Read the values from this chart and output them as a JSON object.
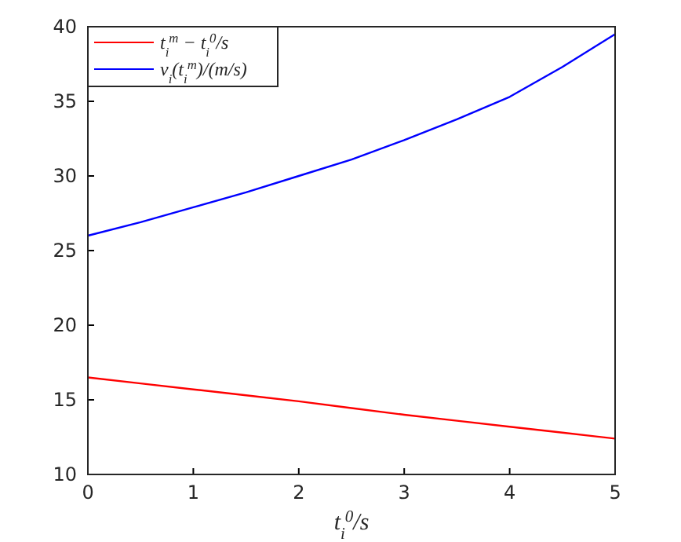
{
  "chart_data": {
    "type": "line",
    "xlabel": "t$_{i}$$^{0}$/s",
    "x": [
      0,
      0.5,
      1,
      1.5,
      2,
      2.5,
      3,
      3.5,
      4,
      4.5,
      5
    ],
    "series": [
      {
        "name": "t$_{i}$$^{m}$ − t$_{i}$$^{0}$/s",
        "color": "#ff0000",
        "values": [
          16.5,
          16.1,
          15.7,
          15.3,
          14.9,
          14.45,
          14.0,
          13.6,
          13.2,
          12.8,
          12.4
        ]
      },
      {
        "name": "v$_{i}$(t$_{i}$$^{m}$)/(m/s)",
        "color": "#0000ff",
        "values": [
          26.0,
          26.9,
          27.9,
          28.9,
          30.0,
          31.1,
          32.4,
          33.8,
          35.3,
          37.3,
          39.5
        ]
      }
    ],
    "xlim": [
      0,
      5
    ],
    "xticks": [
      0,
      1,
      2,
      3,
      4,
      5
    ],
    "ylim": [
      10,
      40
    ],
    "yticks": [
      10,
      15,
      20,
      25,
      30,
      35,
      40
    ],
    "grid": false,
    "legend": "top left",
    "line_style": "solid",
    "marker": "none"
  }
}
